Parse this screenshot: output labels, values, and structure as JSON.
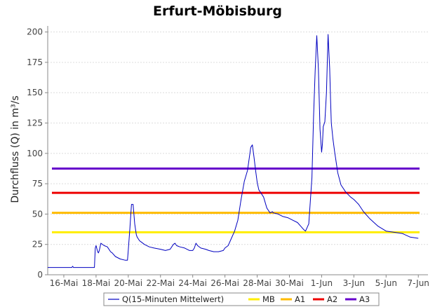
{
  "chart_data": {
    "type": "line",
    "title": "Erfurt-Möbisburg",
    "xlabel": "",
    "ylabel": "Durchfluss (Q) in m³/s",
    "ylim": [
      0,
      205
    ],
    "yticks": [
      0,
      25,
      50,
      75,
      100,
      125,
      150,
      175,
      200
    ],
    "xlim": [
      0,
      23.6
    ],
    "xticks": [
      {
        "pos": 1,
        "label": "16-Mai"
      },
      {
        "pos": 3,
        "label": "18-Mai"
      },
      {
        "pos": 5,
        "label": "20-Mai"
      },
      {
        "pos": 7,
        "label": "22-Mai"
      },
      {
        "pos": 9,
        "label": "24-Mai"
      },
      {
        "pos": 11,
        "label": "26-Mai"
      },
      {
        "pos": 13,
        "label": "28-Mai"
      },
      {
        "pos": 15,
        "label": "30-Mai"
      },
      {
        "pos": 17,
        "label": "1-Jun"
      },
      {
        "pos": 19,
        "label": "3-Jun"
      },
      {
        "pos": 21,
        "label": "5-Jun"
      },
      {
        "pos": 23,
        "label": "7-Jun"
      }
    ],
    "grid": true,
    "legend_position": "bottom",
    "series": [
      {
        "name": "Q(15-Minuten Mittelwert)",
        "color": "#0000c0",
        "x": [
          0,
          0.5,
          1,
          1.5,
          1.55,
          1.6,
          2,
          2.5,
          2.9,
          2.92,
          2.95,
          3,
          3.1,
          3.15,
          3.2,
          3.3,
          3.5,
          3.7,
          3.9,
          4,
          4.2,
          4.5,
          4.8,
          4.95,
          5,
          5.1,
          5.2,
          5.3,
          5.4,
          5.5,
          5.55,
          5.6,
          5.7,
          5.8,
          6,
          6.3,
          6.6,
          7,
          7.3,
          7.6,
          7.8,
          7.9,
          8,
          8.2,
          8.5,
          8.8,
          9,
          9.1,
          9.2,
          9.3,
          9.5,
          9.8,
          10,
          10.3,
          10.6,
          10.9,
          11,
          11.2,
          11.4,
          11.6,
          11.8,
          12,
          12.2,
          12.4,
          12.6,
          12.7,
          12.8,
          12.9,
          13,
          13.1,
          13.2,
          13.4,
          13.6,
          13.8,
          13.95,
          14,
          14.3,
          14.6,
          14.9,
          15.2,
          15.5,
          15.7,
          15.9,
          16,
          16.2,
          16.4,
          16.5,
          16.6,
          16.7,
          16.8,
          16.9,
          17,
          17.05,
          17.1,
          17.2,
          17.3,
          17.4,
          17.5,
          17.55,
          17.6,
          17.7,
          17.8,
          17.9,
          18,
          18.2,
          18.5,
          18.8,
          19,
          19.3,
          19.6,
          20,
          20.5,
          21,
          21.5,
          22,
          22.5,
          23
        ],
        "y": [
          6,
          6,
          6,
          6,
          7,
          6,
          6,
          6,
          6,
          13,
          22,
          24,
          19,
          18,
          20,
          26,
          24,
          23,
          19,
          18,
          15,
          13,
          12,
          12,
          20,
          38,
          58,
          58,
          42,
          33,
          31,
          30,
          28,
          27,
          25,
          23,
          22,
          21,
          20,
          21,
          25,
          26,
          24,
          23,
          22,
          20,
          20,
          22,
          26,
          24,
          22,
          21,
          20,
          19,
          19,
          20,
          22,
          24,
          30,
          36,
          45,
          62,
          77,
          86,
          105,
          107,
          97,
          86,
          76,
          70,
          68,
          64,
          55,
          51,
          52,
          51,
          50,
          48,
          47,
          45,
          43,
          40,
          37,
          36,
          42,
          80,
          130,
          168,
          197,
          170,
          120,
          101,
          108,
          122,
          126,
          150,
          198,
          170,
          145,
          125,
          112,
          102,
          93,
          84,
          74,
          68,
          64,
          62,
          58,
          52,
          46,
          40,
          36,
          35,
          34,
          31,
          30
        ],
        "interpolate": "line"
      },
      {
        "name": "MB",
        "color": "#ffee00",
        "value": 35,
        "type": "hline"
      },
      {
        "name": "A1",
        "color": "#ffbb00",
        "value": 51,
        "type": "hline"
      },
      {
        "name": "A2",
        "color": "#ee0000",
        "value": 67.5,
        "type": "hline"
      },
      {
        "name": "A3",
        "color": "#6600cc",
        "value": 87.5,
        "type": "hline"
      }
    ]
  }
}
